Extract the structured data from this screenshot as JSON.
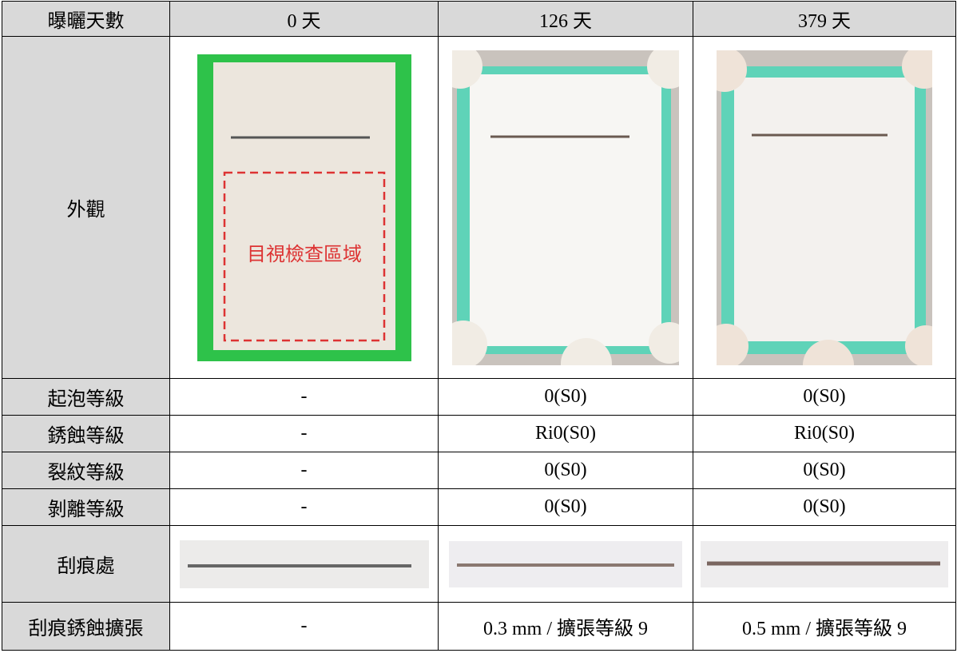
{
  "table": {
    "header": [
      "曝曬天數",
      "0 天",
      "126 天",
      "379 天"
    ],
    "appearance_label": "外觀",
    "inspection_area": "目視檢查區域",
    "rows": [
      [
        "起泡等級",
        "-",
        "0(S0)",
        "0(S0)"
      ],
      [
        "銹蝕等級",
        "-",
        "Ri0(S0)",
        "Ri0(S0)"
      ],
      [
        "裂紋等級",
        "-",
        "0(S0)",
        "0(S0)"
      ],
      [
        "剝離等級",
        "-",
        "0(S0)",
        "0(S0)"
      ]
    ],
    "scratch_label": "刮痕處",
    "last_row": [
      "刮痕銹蝕擴張",
      "-",
      "0.3 mm / 擴張等級 9",
      "0.5 mm / 擴張等級 9"
    ]
  }
}
